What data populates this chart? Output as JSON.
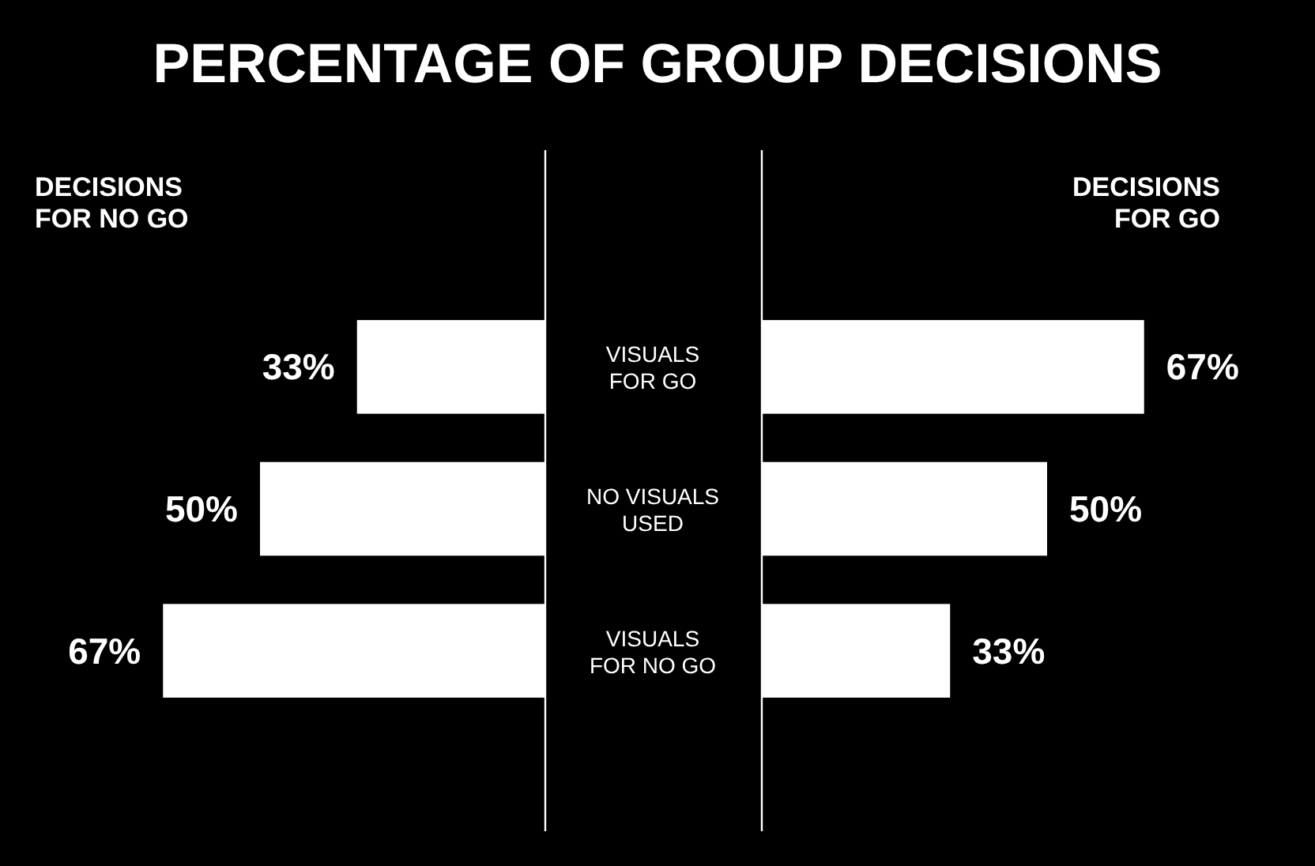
{
  "chart_data": [
    {
      "type": "bar",
      "orientation": "horizontal",
      "title": "PERCENTAGE OF GROUP DECISIONS",
      "subtitle": "DECISIONS FOR NO GO",
      "categories": [
        "VISUALS FOR GO",
        "NO VISUALS USED",
        "VISUALS FOR NO GO"
      ],
      "values": [
        33,
        50,
        67
      ],
      "value_labels": [
        "33%",
        "50%",
        "67%"
      ],
      "color": "#ffffff",
      "tick_labels": "y"
    },
    {
      "type": "bar",
      "orientation": "horizontal",
      "subtitle": "DECISIONS FOR GO",
      "categories": [
        null,
        null,
        null
      ],
      "values": [
        67,
        50,
        33
      ],
      "value_labels": [
        "67%",
        "50%",
        "33%"
      ],
      "color": "#ffffff"
    }
  ]
}
